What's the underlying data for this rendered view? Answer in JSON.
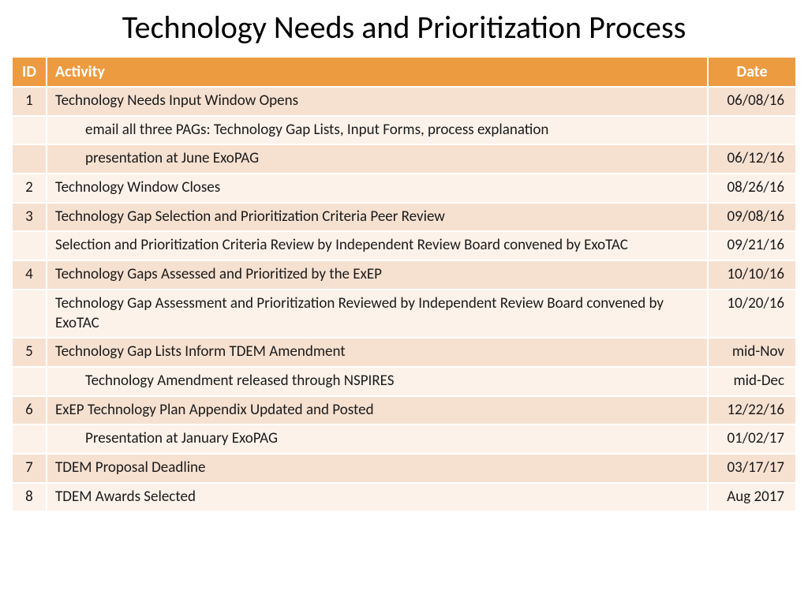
{
  "title": "Technology Needs and Prioritization Process",
  "colors": {
    "header_bg": "#ed9b40",
    "header_text": "#ffffff",
    "row_dark": "#f6e1d1",
    "row_light": "#fcf2ea",
    "text": "#1a1a1a"
  },
  "columns": {
    "id": "ID",
    "activity": "Activity",
    "date": "Date"
  },
  "rows": [
    {
      "id": "1",
      "activity": "Technology Needs Input Window Opens",
      "date": "06/08/16",
      "indent": false
    },
    {
      "id": "",
      "activity": "email all three PAGs: Technology Gap Lists, Input Forms, process explanation",
      "date": "",
      "indent": true
    },
    {
      "id": "",
      "activity": "presentation at June ExoPAG",
      "date": "06/12/16",
      "indent": true
    },
    {
      "id": "2",
      "activity": "Technology Window Closes",
      "date": "08/26/16",
      "indent": false
    },
    {
      "id": "3",
      "activity": "Technology Gap Selection and Prioritization Criteria Peer Review",
      "date": "09/08/16",
      "indent": false
    },
    {
      "id": "",
      "activity": "Selection and Prioritization Criteria Review by Independent Review Board convened by ExoTAC",
      "date": "09/21/16",
      "indent": false
    },
    {
      "id": "4",
      "activity": "Technology Gaps Assessed and Prioritized by the ExEP",
      "date": "10/10/16",
      "indent": false
    },
    {
      "id": "",
      "activity": "Technology Gap Assessment and Prioritization Reviewed by Independent Review Board convened by ExoTAC",
      "date": "10/20/16",
      "indent": false
    },
    {
      "id": "5",
      "activity": "Technology Gap Lists Inform TDEM Amendment",
      "date": "mid-Nov",
      "indent": false
    },
    {
      "id": "",
      "activity": "Technology Amendment released through NSPIRES",
      "date": "mid-Dec",
      "indent": true
    },
    {
      "id": "6",
      "activity": "ExEP Technology Plan Appendix Updated and Posted",
      "date": "12/22/16",
      "indent": false
    },
    {
      "id": "",
      "activity": "Presentation at January ExoPAG",
      "date": "01/02/17",
      "indent": true
    },
    {
      "id": "7",
      "activity": "TDEM Proposal Deadline",
      "date": "03/17/17",
      "indent": false
    },
    {
      "id": "8",
      "activity": "TDEM Awards Selected",
      "date": "Aug 2017",
      "indent": false
    }
  ]
}
